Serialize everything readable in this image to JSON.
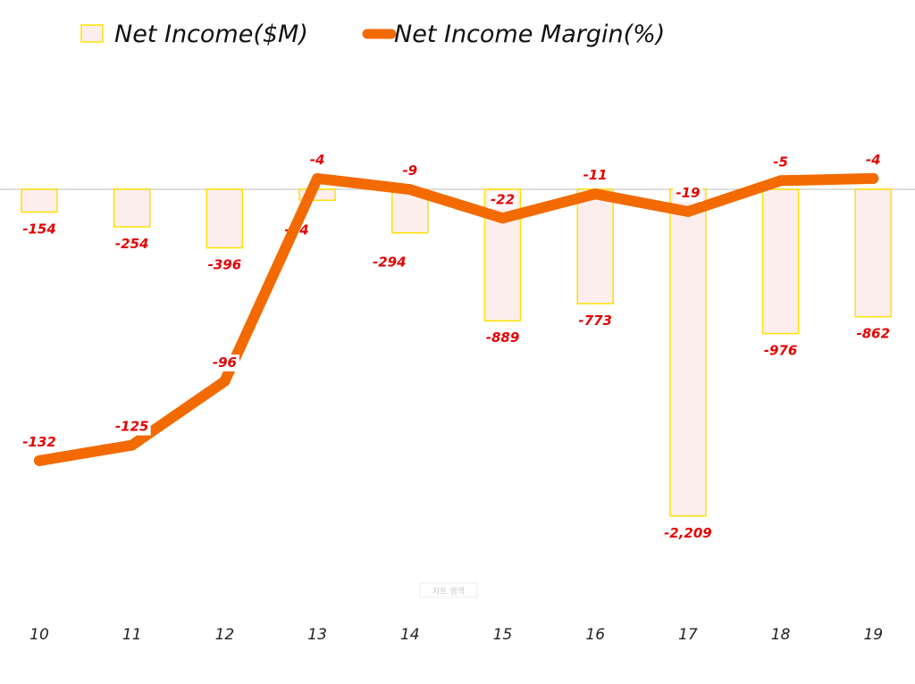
{
  "legend": {
    "bar_series_label": "Net Income($M)",
    "line_series_label": "Net Income Margin(%)"
  },
  "watermark": "차트 영역",
  "colors": {
    "bar_fill": "#fdeeee",
    "bar_stroke": "#ffe100",
    "line": "#f26a00",
    "labels": "#e60000",
    "axis": "#dddddd"
  },
  "chart_data": {
    "type": "bar",
    "categories": [
      "10",
      "11",
      "12",
      "13",
      "14",
      "15",
      "16",
      "17",
      "18",
      "19"
    ],
    "series": [
      {
        "name": "Net Income($M)",
        "type": "bar",
        "values": [
          -154,
          -254,
          -396,
          -74,
          -294,
          -889,
          -773,
          -2209,
          -976,
          -862
        ],
        "value_labels": [
          "-154",
          "-254",
          "-396",
          "-74",
          "-294",
          "-889",
          "-773",
          "-2,209",
          "-976",
          "-862"
        ]
      },
      {
        "name": "Net Income Margin(%)",
        "type": "line",
        "values": [
          -132,
          -125,
          -96,
          -4,
          -9,
          -22,
          -11,
          -19,
          -5,
          -4
        ],
        "value_labels": [
          "-132",
          "-125",
          "-96",
          "-4",
          "-9",
          "-22",
          "-11",
          "-19",
          "-5",
          "-4"
        ]
      }
    ],
    "bar_ylim": [
      -2500,
      0
    ],
    "line_ylim": [
      -160,
      0
    ],
    "grid": false,
    "legend_position": "top-left"
  }
}
